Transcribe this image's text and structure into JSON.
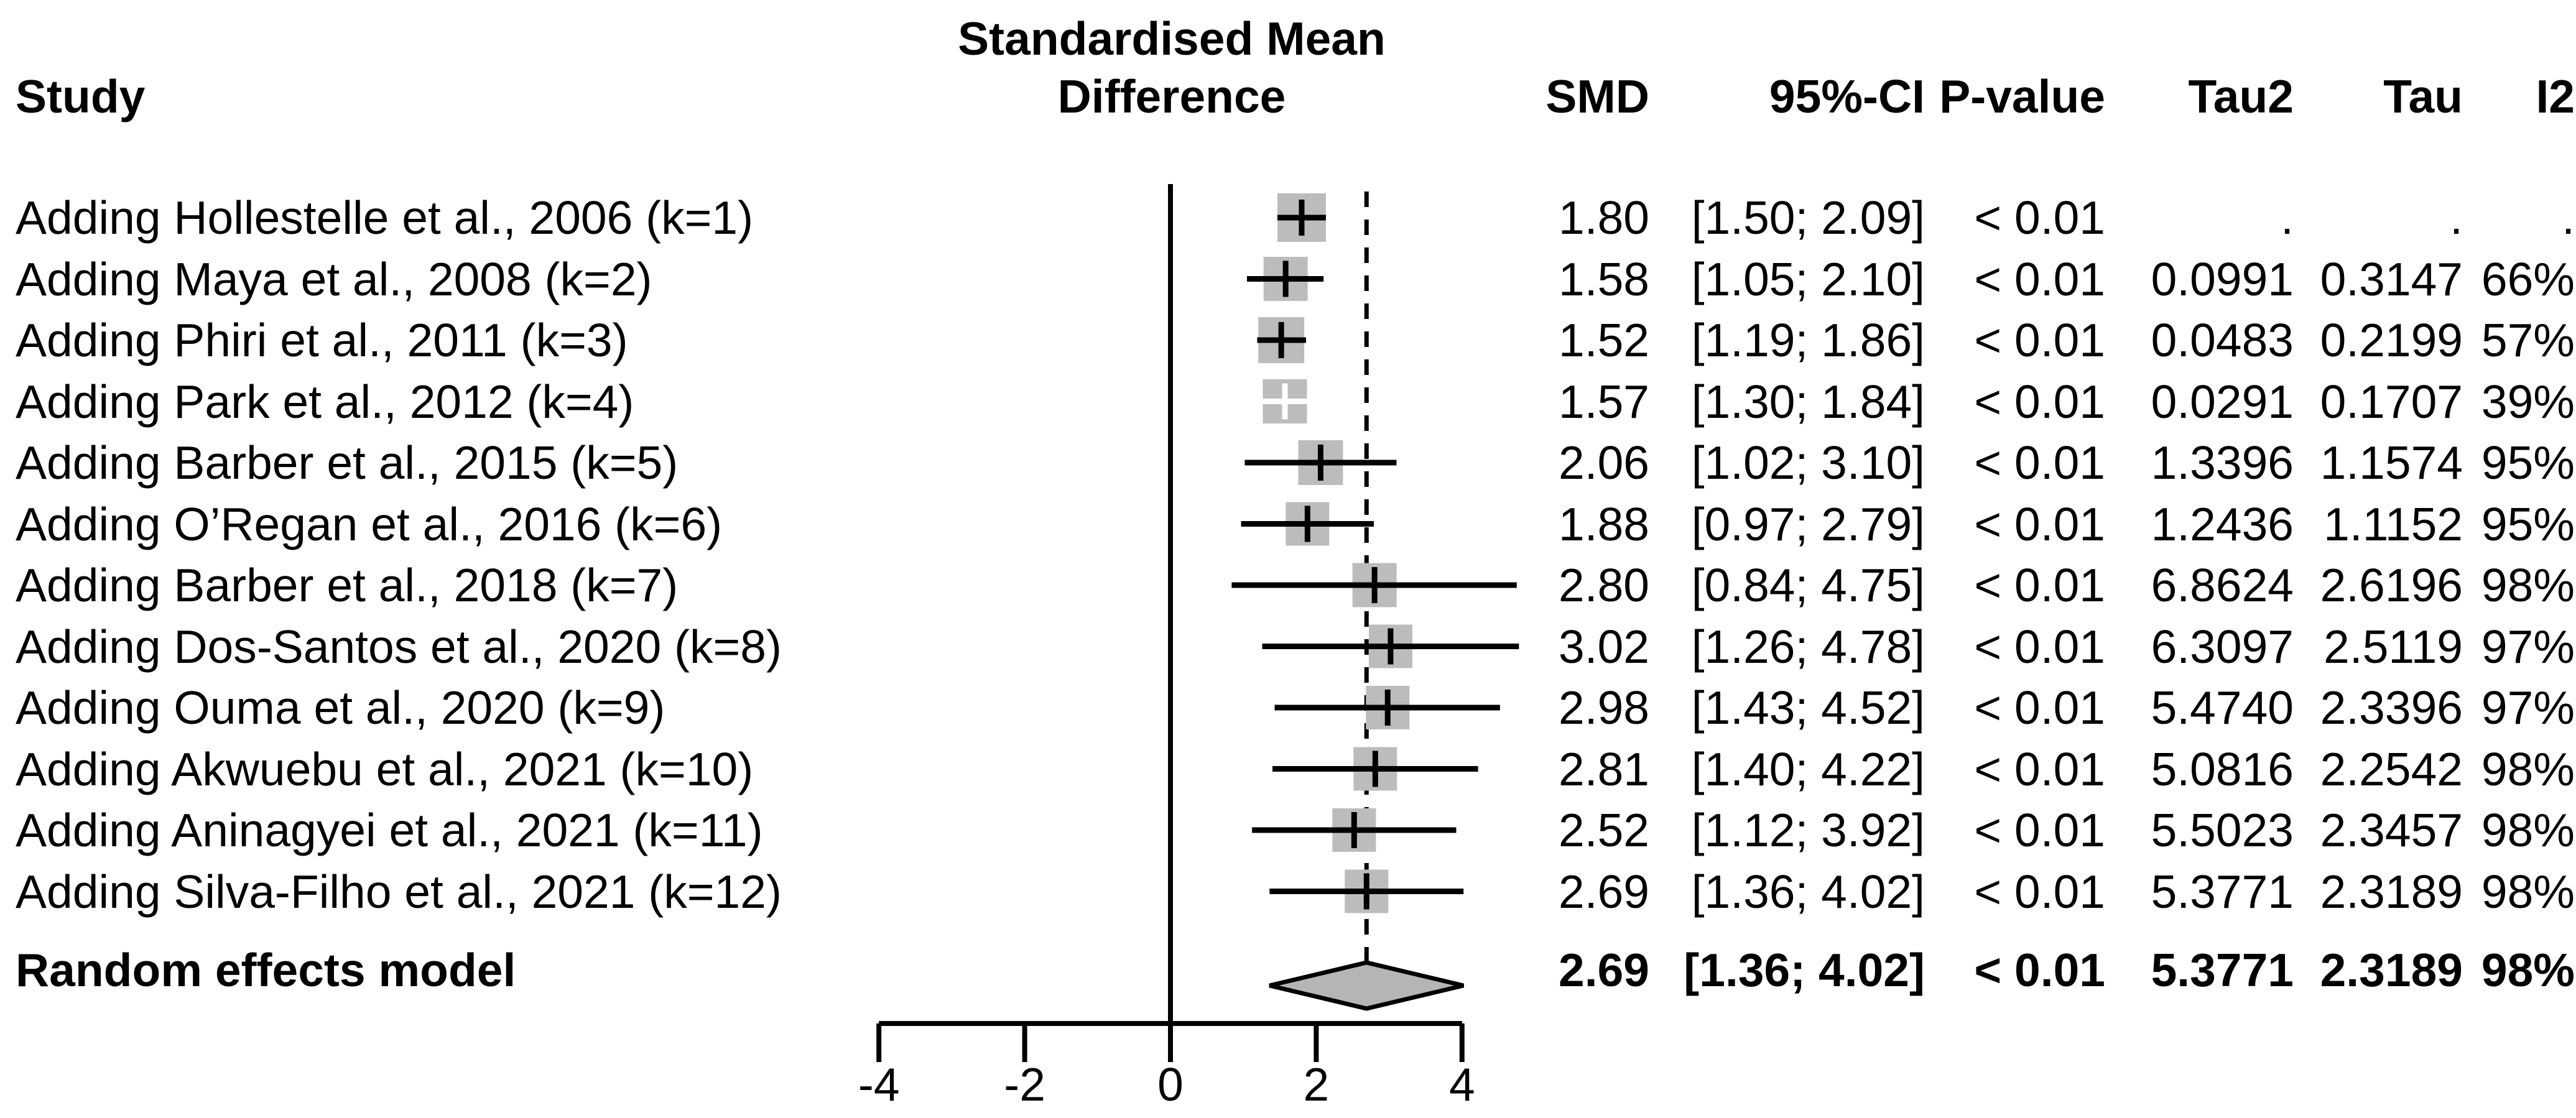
{
  "figure": {
    "title_line1": "Standardised Mean",
    "title_line2": "Difference",
    "study_header": "Study"
  },
  "table": {
    "headers": {
      "smd": "SMD",
      "ci": "95%-CI",
      "p": "P-value",
      "tau2": "Tau2",
      "tau": "Tau",
      "i2": "I2"
    }
  },
  "colors": {
    "square": "#bcbcbc",
    "diamond_fill": "#b5b5b5",
    "line": "#000000",
    "background": "#ffffff",
    "white_marker": "#ffffff"
  },
  "chart_data": {
    "type": "scatter",
    "subtype": "cumulative-forest-plot",
    "title": "Standardised Mean Difference",
    "xlabel": "",
    "ylabel": "",
    "x_axis": {
      "ticks": [
        -4,
        -2,
        0,
        2,
        4
      ],
      "range": [
        -4.7,
        4.7
      ],
      "zero_reference_line": 0,
      "dashed_reference_line": 2.69,
      "grid": false
    },
    "legend": "none",
    "studies": [
      {
        "label": "Adding Hollestelle et al., 2006 (k=1)",
        "smd": 1.8,
        "ci_lower": 1.5,
        "ci_upper": 2.09,
        "p": "< 0.01",
        "tau2": ".",
        "tau": ".",
        "i2": ".",
        "marker_color": "black"
      },
      {
        "label": "Adding Maya et al., 2008 (k=2)",
        "smd": 1.58,
        "ci_lower": 1.05,
        "ci_upper": 2.1,
        "p": "< 0.01",
        "tau2": "0.0991",
        "tau": "0.3147",
        "i2": "66%",
        "marker_color": "black"
      },
      {
        "label": "Adding Phiri et al., 2011 (k=3)",
        "smd": 1.52,
        "ci_lower": 1.19,
        "ci_upper": 1.86,
        "p": "< 0.01",
        "tau2": "0.0483",
        "tau": "0.2199",
        "i2": "57%",
        "marker_color": "black"
      },
      {
        "label": "Adding Park et al., 2012 (k=4)",
        "smd": 1.57,
        "ci_lower": 1.3,
        "ci_upper": 1.84,
        "p": "< 0.01",
        "tau2": "0.0291",
        "tau": "0.1707",
        "i2": "39%",
        "marker_color": "white"
      },
      {
        "label": "Adding Barber et al., 2015 (k=5)",
        "smd": 2.06,
        "ci_lower": 1.02,
        "ci_upper": 3.1,
        "p": "< 0.01",
        "tau2": "1.3396",
        "tau": "1.1574",
        "i2": "95%",
        "marker_color": "black"
      },
      {
        "label": "Adding O’Regan et al., 2016 (k=6)",
        "smd": 1.88,
        "ci_lower": 0.97,
        "ci_upper": 2.79,
        "p": "< 0.01",
        "tau2": "1.2436",
        "tau": "1.1152",
        "i2": "95%",
        "marker_color": "black"
      },
      {
        "label": "Adding Barber et al., 2018 (k=7)",
        "smd": 2.8,
        "ci_lower": 0.84,
        "ci_upper": 4.75,
        "p": "< 0.01",
        "tau2": "6.8624",
        "tau": "2.6196",
        "i2": "98%",
        "marker_color": "black"
      },
      {
        "label": "Adding Dos-Santos et al., 2020 (k=8)",
        "smd": 3.02,
        "ci_lower": 1.26,
        "ci_upper": 4.78,
        "p": "< 0.01",
        "tau2": "6.3097",
        "tau": "2.5119",
        "i2": "97%",
        "marker_color": "black"
      },
      {
        "label": "Adding Ouma et al., 2020 (k=9)",
        "smd": 2.98,
        "ci_lower": 1.43,
        "ci_upper": 4.52,
        "p": "< 0.01",
        "tau2": "5.4740",
        "tau": "2.3396",
        "i2": "97%",
        "marker_color": "black"
      },
      {
        "label": "Adding Akwuebu et al., 2021 (k=10)",
        "smd": 2.81,
        "ci_lower": 1.4,
        "ci_upper": 4.22,
        "p": "< 0.01",
        "tau2": "5.0816",
        "tau": "2.2542",
        "i2": "98%",
        "marker_color": "black"
      },
      {
        "label": "Adding Aninagyei et al., 2021 (k=11)",
        "smd": 2.52,
        "ci_lower": 1.12,
        "ci_upper": 3.92,
        "p": "< 0.01",
        "tau2": "5.5023",
        "tau": "2.3457",
        "i2": "98%",
        "marker_color": "black"
      },
      {
        "label": "Adding Silva-Filho et al., 2021 (k=12)",
        "smd": 2.69,
        "ci_lower": 1.36,
        "ci_upper": 4.02,
        "p": "< 0.01",
        "tau2": "5.3771",
        "tau": "2.3189",
        "i2": "98%",
        "marker_color": "black"
      }
    ],
    "summary": {
      "label": "Random effects model",
      "smd": 2.69,
      "ci_lower": 1.36,
      "ci_upper": 4.02,
      "p": "< 0.01",
      "tau2": "5.3771",
      "tau": "2.3189",
      "i2": "98%"
    }
  }
}
